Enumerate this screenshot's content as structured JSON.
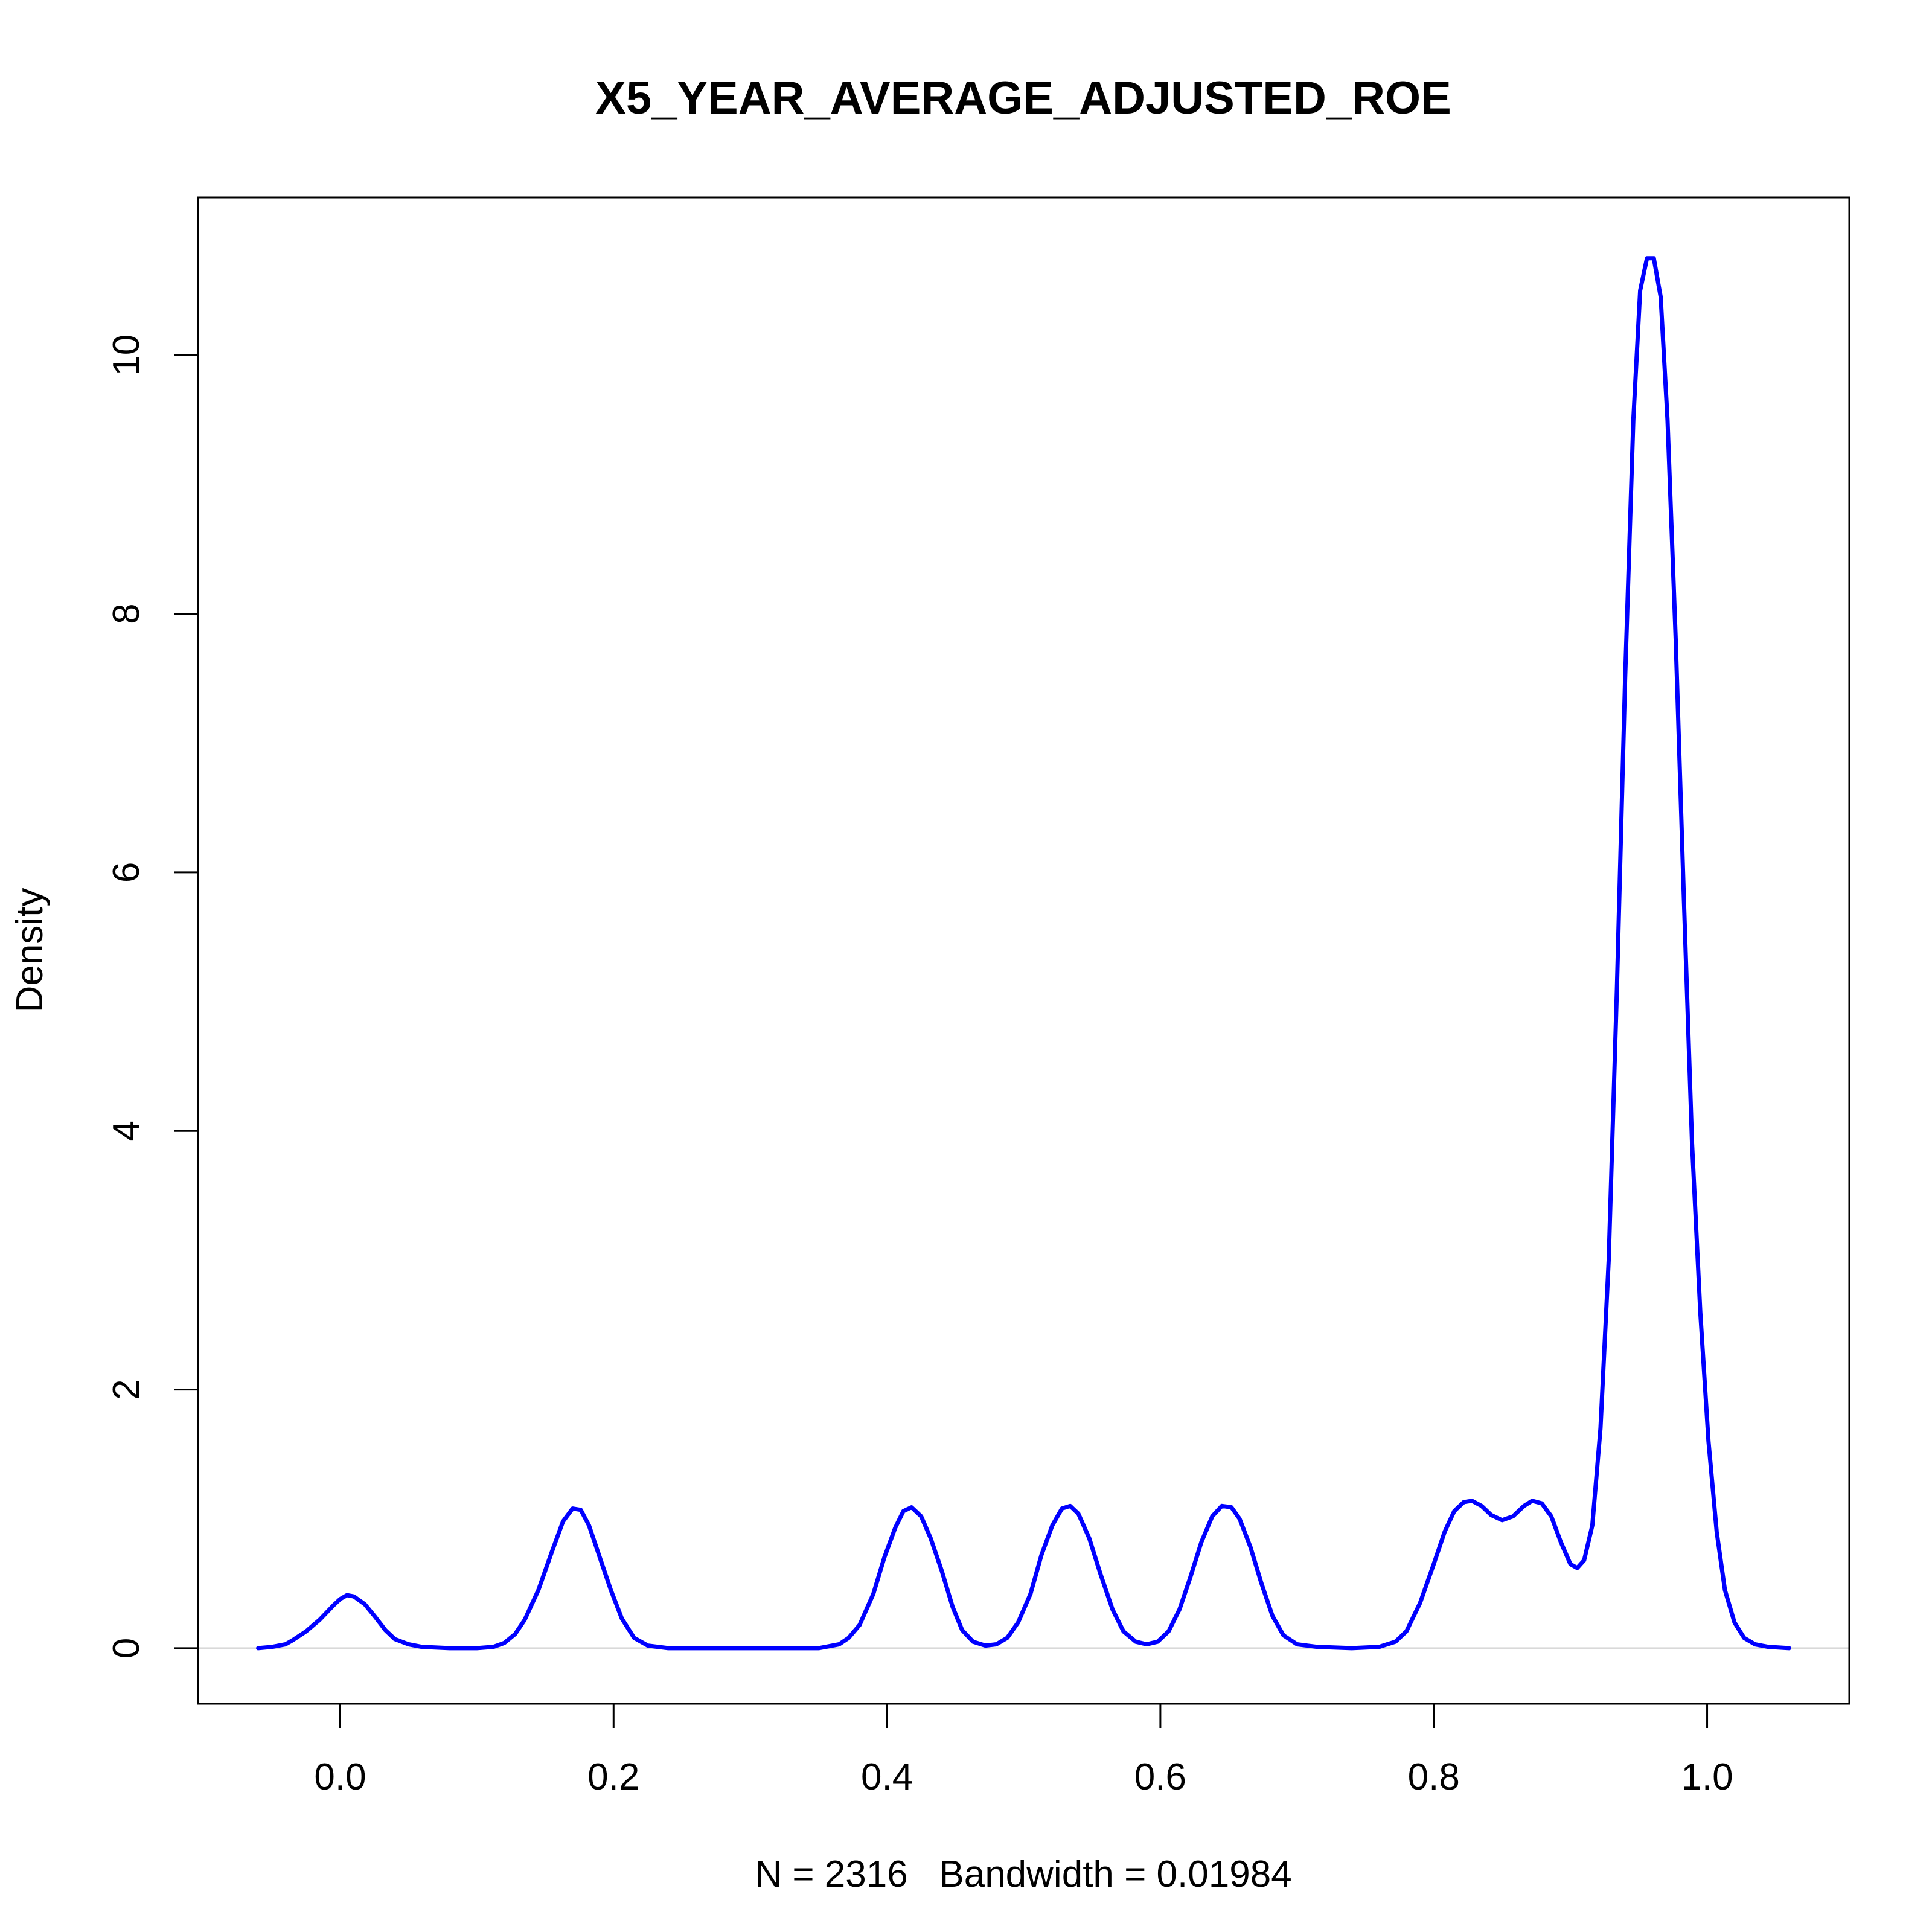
{
  "chart_data": {
    "type": "line",
    "title": "X5_YEAR_AVERAGE_ADJUSTED_ROE",
    "xlabel": "N = 2316   Bandwidth = 0.01984",
    "ylabel": "Density",
    "xlim": [
      -0.104,
      1.104
    ],
    "ylim": [
      -0.43,
      11.22
    ],
    "x_ticks": [
      0.0,
      0.2,
      0.4,
      0.6,
      0.8,
      1.0
    ],
    "x_tick_labels": [
      "0.0",
      "0.2",
      "0.4",
      "0.6",
      "0.8",
      "1.0"
    ],
    "y_ticks": [
      0,
      2,
      4,
      6,
      8,
      10
    ],
    "y_tick_labels": [
      "0",
      "2",
      "4",
      "6",
      "8",
      "10"
    ],
    "grid": false,
    "baseline": 0,
    "colors": {
      "line": "#0000FF",
      "baseline": "#D9D9D9",
      "axes": "#000000"
    },
    "series": [
      {
        "points": [
          [
            -0.06,
            0.0
          ],
          [
            -0.05,
            0.01
          ],
          [
            -0.04,
            0.03
          ],
          [
            -0.035,
            0.06
          ],
          [
            -0.025,
            0.13
          ],
          [
            -0.015,
            0.22
          ],
          [
            -0.005,
            0.33
          ],
          [
            0.0,
            0.38
          ],
          [
            0.005,
            0.41
          ],
          [
            0.01,
            0.4
          ],
          [
            0.018,
            0.34
          ],
          [
            0.025,
            0.25
          ],
          [
            0.033,
            0.14
          ],
          [
            0.04,
            0.07
          ],
          [
            0.05,
            0.03
          ],
          [
            0.06,
            0.01
          ],
          [
            0.08,
            0.0
          ],
          [
            0.1,
            0.0
          ],
          [
            0.112,
            0.01
          ],
          [
            0.12,
            0.04
          ],
          [
            0.128,
            0.11
          ],
          [
            0.135,
            0.22
          ],
          [
            0.145,
            0.45
          ],
          [
            0.155,
            0.75
          ],
          [
            0.163,
            0.98
          ],
          [
            0.17,
            1.08
          ],
          [
            0.176,
            1.07
          ],
          [
            0.182,
            0.95
          ],
          [
            0.19,
            0.7
          ],
          [
            0.198,
            0.45
          ],
          [
            0.206,
            0.23
          ],
          [
            0.215,
            0.08
          ],
          [
            0.225,
            0.02
          ],
          [
            0.24,
            0.0
          ],
          [
            0.3,
            0.0
          ],
          [
            0.35,
            0.0
          ],
          [
            0.365,
            0.03
          ],
          [
            0.372,
            0.08
          ],
          [
            0.38,
            0.18
          ],
          [
            0.39,
            0.42
          ],
          [
            0.398,
            0.7
          ],
          [
            0.406,
            0.93
          ],
          [
            0.412,
            1.06
          ],
          [
            0.418,
            1.09
          ],
          [
            0.425,
            1.02
          ],
          [
            0.432,
            0.85
          ],
          [
            0.44,
            0.6
          ],
          [
            0.448,
            0.32
          ],
          [
            0.455,
            0.14
          ],
          [
            0.463,
            0.05
          ],
          [
            0.472,
            0.02
          ],
          [
            0.48,
            0.03
          ],
          [
            0.488,
            0.08
          ],
          [
            0.496,
            0.2
          ],
          [
            0.505,
            0.42
          ],
          [
            0.513,
            0.72
          ],
          [
            0.521,
            0.95
          ],
          [
            0.528,
            1.08
          ],
          [
            0.534,
            1.1
          ],
          [
            0.54,
            1.04
          ],
          [
            0.548,
            0.85
          ],
          [
            0.556,
            0.58
          ],
          [
            0.565,
            0.3
          ],
          [
            0.573,
            0.13
          ],
          [
            0.582,
            0.05
          ],
          [
            0.59,
            0.03
          ],
          [
            0.598,
            0.05
          ],
          [
            0.606,
            0.13
          ],
          [
            0.614,
            0.3
          ],
          [
            0.622,
            0.55
          ],
          [
            0.63,
            0.82
          ],
          [
            0.638,
            1.02
          ],
          [
            0.645,
            1.1
          ],
          [
            0.652,
            1.09
          ],
          [
            0.658,
            1.0
          ],
          [
            0.666,
            0.78
          ],
          [
            0.674,
            0.5
          ],
          [
            0.682,
            0.25
          ],
          [
            0.69,
            0.1
          ],
          [
            0.7,
            0.03
          ],
          [
            0.715,
            0.01
          ],
          [
            0.74,
            0.0
          ],
          [
            0.76,
            0.01
          ],
          [
            0.772,
            0.05
          ],
          [
            0.78,
            0.13
          ],
          [
            0.79,
            0.35
          ],
          [
            0.8,
            0.65
          ],
          [
            0.808,
            0.9
          ],
          [
            0.815,
            1.06
          ],
          [
            0.822,
            1.13
          ],
          [
            0.828,
            1.14
          ],
          [
            0.835,
            1.1
          ],
          [
            0.842,
            1.03
          ],
          [
            0.85,
            0.99
          ],
          [
            0.858,
            1.02
          ],
          [
            0.866,
            1.1
          ],
          [
            0.872,
            1.14
          ],
          [
            0.879,
            1.12
          ],
          [
            0.886,
            1.02
          ],
          [
            0.893,
            0.82
          ],
          [
            0.9,
            0.65
          ],
          [
            0.905,
            0.62
          ],
          [
            0.91,
            0.68
          ],
          [
            0.916,
            0.95
          ],
          [
            0.922,
            1.7
          ],
          [
            0.928,
            3.0
          ],
          [
            0.934,
            5.1
          ],
          [
            0.94,
            7.5
          ],
          [
            0.946,
            9.5
          ],
          [
            0.951,
            10.5
          ],
          [
            0.956,
            10.75
          ],
          [
            0.961,
            10.75
          ],
          [
            0.966,
            10.45
          ],
          [
            0.971,
            9.5
          ],
          [
            0.977,
            7.8
          ],
          [
            0.983,
            5.8
          ],
          [
            0.989,
            3.9
          ],
          [
            0.995,
            2.6
          ],
          [
            1.001,
            1.6
          ],
          [
            1.007,
            0.9
          ],
          [
            1.013,
            0.45
          ],
          [
            1.02,
            0.2
          ],
          [
            1.027,
            0.08
          ],
          [
            1.035,
            0.03
          ],
          [
            1.045,
            0.01
          ],
          [
            1.06,
            0.0
          ]
        ]
      }
    ]
  }
}
